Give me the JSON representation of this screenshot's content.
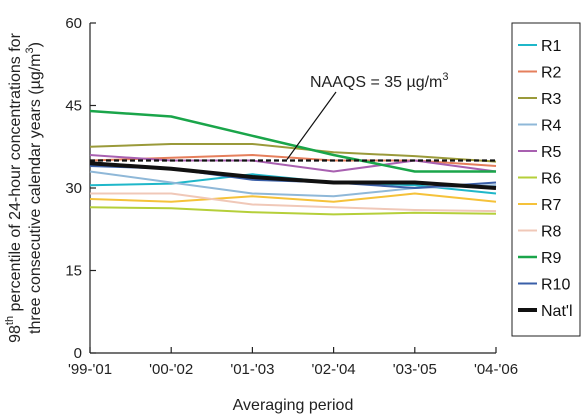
{
  "chart_data": {
    "type": "line",
    "categories": [
      "'99-'01",
      "'00-'02",
      "'01-'03",
      "'02-'04",
      "'03-'05",
      "'04-'06"
    ],
    "ylim": [
      0,
      60
    ],
    "yticks": [
      0,
      15,
      30,
      45,
      60
    ],
    "xlabel": "Averaging period",
    "ylabel_prefix": "98",
    "ylabel_sup": "th",
    "ylabel_line1_rest": " percentile of 24-hour concentrations for",
    "ylabel_line2": "three consecutive calendar years (µg/m",
    "ylabel_line2_sup": "3",
    "ylabel_line2_end": ")",
    "grid": false,
    "legend_position": "right",
    "reference_line": {
      "value": 35,
      "label_text": "NAAQS = 35 µg/m",
      "label_sup": "3",
      "style": "dashed",
      "color": "#111111"
    },
    "series": [
      {
        "name": "R1",
        "color": "#1fb7c9",
        "width": 2,
        "values": [
          30.5,
          30.8,
          32.5,
          31.0,
          30.5,
          29.0
        ]
      },
      {
        "name": "R2",
        "color": "#e57f5c",
        "width": 2,
        "values": [
          35.0,
          35.5,
          36.0,
          35.0,
          35.0,
          34.0
        ]
      },
      {
        "name": "R3",
        "color": "#9a9a3a",
        "width": 2,
        "values": [
          37.5,
          38.0,
          38.0,
          36.5,
          35.8,
          34.8
        ]
      },
      {
        "name": "R4",
        "color": "#8fb8d8",
        "width": 2,
        "values": [
          33.0,
          31.0,
          29.0,
          28.5,
          30.0,
          30.5
        ]
      },
      {
        "name": "R5",
        "color": "#a860b0",
        "width": 2,
        "values": [
          36.0,
          35.0,
          35.0,
          33.0,
          35.0,
          33.0
        ]
      },
      {
        "name": "R6",
        "color": "#b5cf3a",
        "width": 2,
        "values": [
          26.5,
          26.3,
          25.6,
          25.2,
          25.5,
          25.3
        ]
      },
      {
        "name": "R7",
        "color": "#f5c23a",
        "width": 2,
        "values": [
          28.0,
          27.5,
          28.5,
          27.5,
          29.0,
          27.5
        ]
      },
      {
        "name": "R8",
        "color": "#f0c8b8",
        "width": 2,
        "values": [
          29.0,
          29.0,
          27.0,
          26.5,
          26.0,
          25.8
        ]
      },
      {
        "name": "R9",
        "color": "#1aa54a",
        "width": 2.5,
        "values": [
          44.0,
          43.0,
          39.5,
          36.0,
          33.0,
          33.0
        ]
      },
      {
        "name": "R10",
        "color": "#3a5fa8",
        "width": 2,
        "values": [
          34.0,
          33.5,
          31.5,
          31.0,
          30.0,
          31.0
        ]
      },
      {
        "name": "Nat'l",
        "color": "#111111",
        "width": 4,
        "values": [
          34.5,
          33.5,
          32.0,
          31.0,
          31.0,
          30.0
        ]
      }
    ]
  }
}
